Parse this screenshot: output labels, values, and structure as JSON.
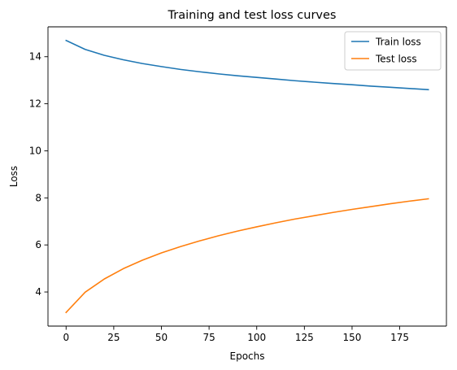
{
  "chart_data": {
    "type": "line",
    "title": "Training and test loss curves",
    "xlabel": "Epochs",
    "ylabel": "Loss",
    "xlim": [
      -9.5,
      199.5
    ],
    "ylim": [
      2.55,
      15.27
    ],
    "xticks": [
      0,
      25,
      50,
      75,
      100,
      125,
      150,
      175
    ],
    "yticks": [
      4,
      6,
      8,
      10,
      12,
      14
    ],
    "grid": false,
    "legend_position": "top-right",
    "x": [
      0,
      10,
      20,
      30,
      40,
      50,
      60,
      70,
      80,
      90,
      100,
      110,
      120,
      130,
      140,
      150,
      160,
      170,
      180,
      190
    ],
    "series": [
      {
        "name": "Train loss",
        "color": "#1f77b4",
        "values": [
          14.69,
          14.31,
          14.06,
          13.87,
          13.71,
          13.58,
          13.46,
          13.36,
          13.27,
          13.19,
          13.12,
          13.05,
          12.98,
          12.92,
          12.86,
          12.81,
          12.75,
          12.7,
          12.65,
          12.6
        ]
      },
      {
        "name": "Test loss",
        "color": "#ff7f0e",
        "values": [
          3.13,
          3.99,
          4.55,
          4.99,
          5.35,
          5.66,
          5.93,
          6.17,
          6.39,
          6.59,
          6.77,
          6.94,
          7.1,
          7.24,
          7.38,
          7.51,
          7.63,
          7.75,
          7.86,
          7.96
        ]
      }
    ]
  }
}
